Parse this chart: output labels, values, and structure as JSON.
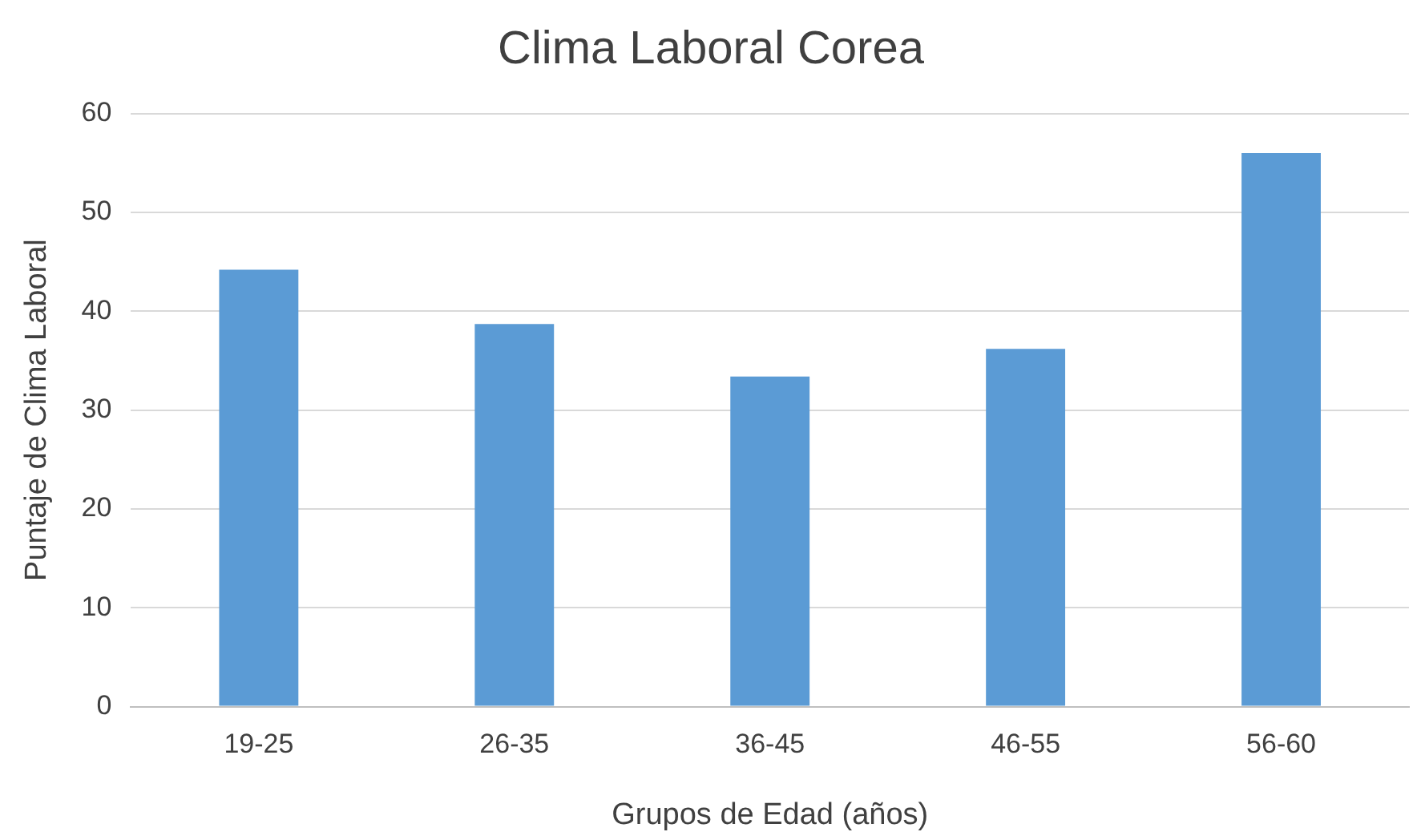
{
  "chart_data": {
    "type": "bar",
    "title": "Clima Laboral Corea",
    "xlabel": "Grupos de Edad (años)",
    "ylabel": "Puntaje de Clima Laboral",
    "categories": [
      "19-25",
      "26-35",
      "36-45",
      "46-55",
      "56-60"
    ],
    "values": [
      44.2,
      38.7,
      33.4,
      36.2,
      56.0
    ],
    "color": "#5b9bd5",
    "ylim": [
      0,
      60
    ],
    "yticks": [
      0,
      10,
      20,
      30,
      40,
      50,
      60
    ],
    "grid": "y",
    "legend": false
  }
}
